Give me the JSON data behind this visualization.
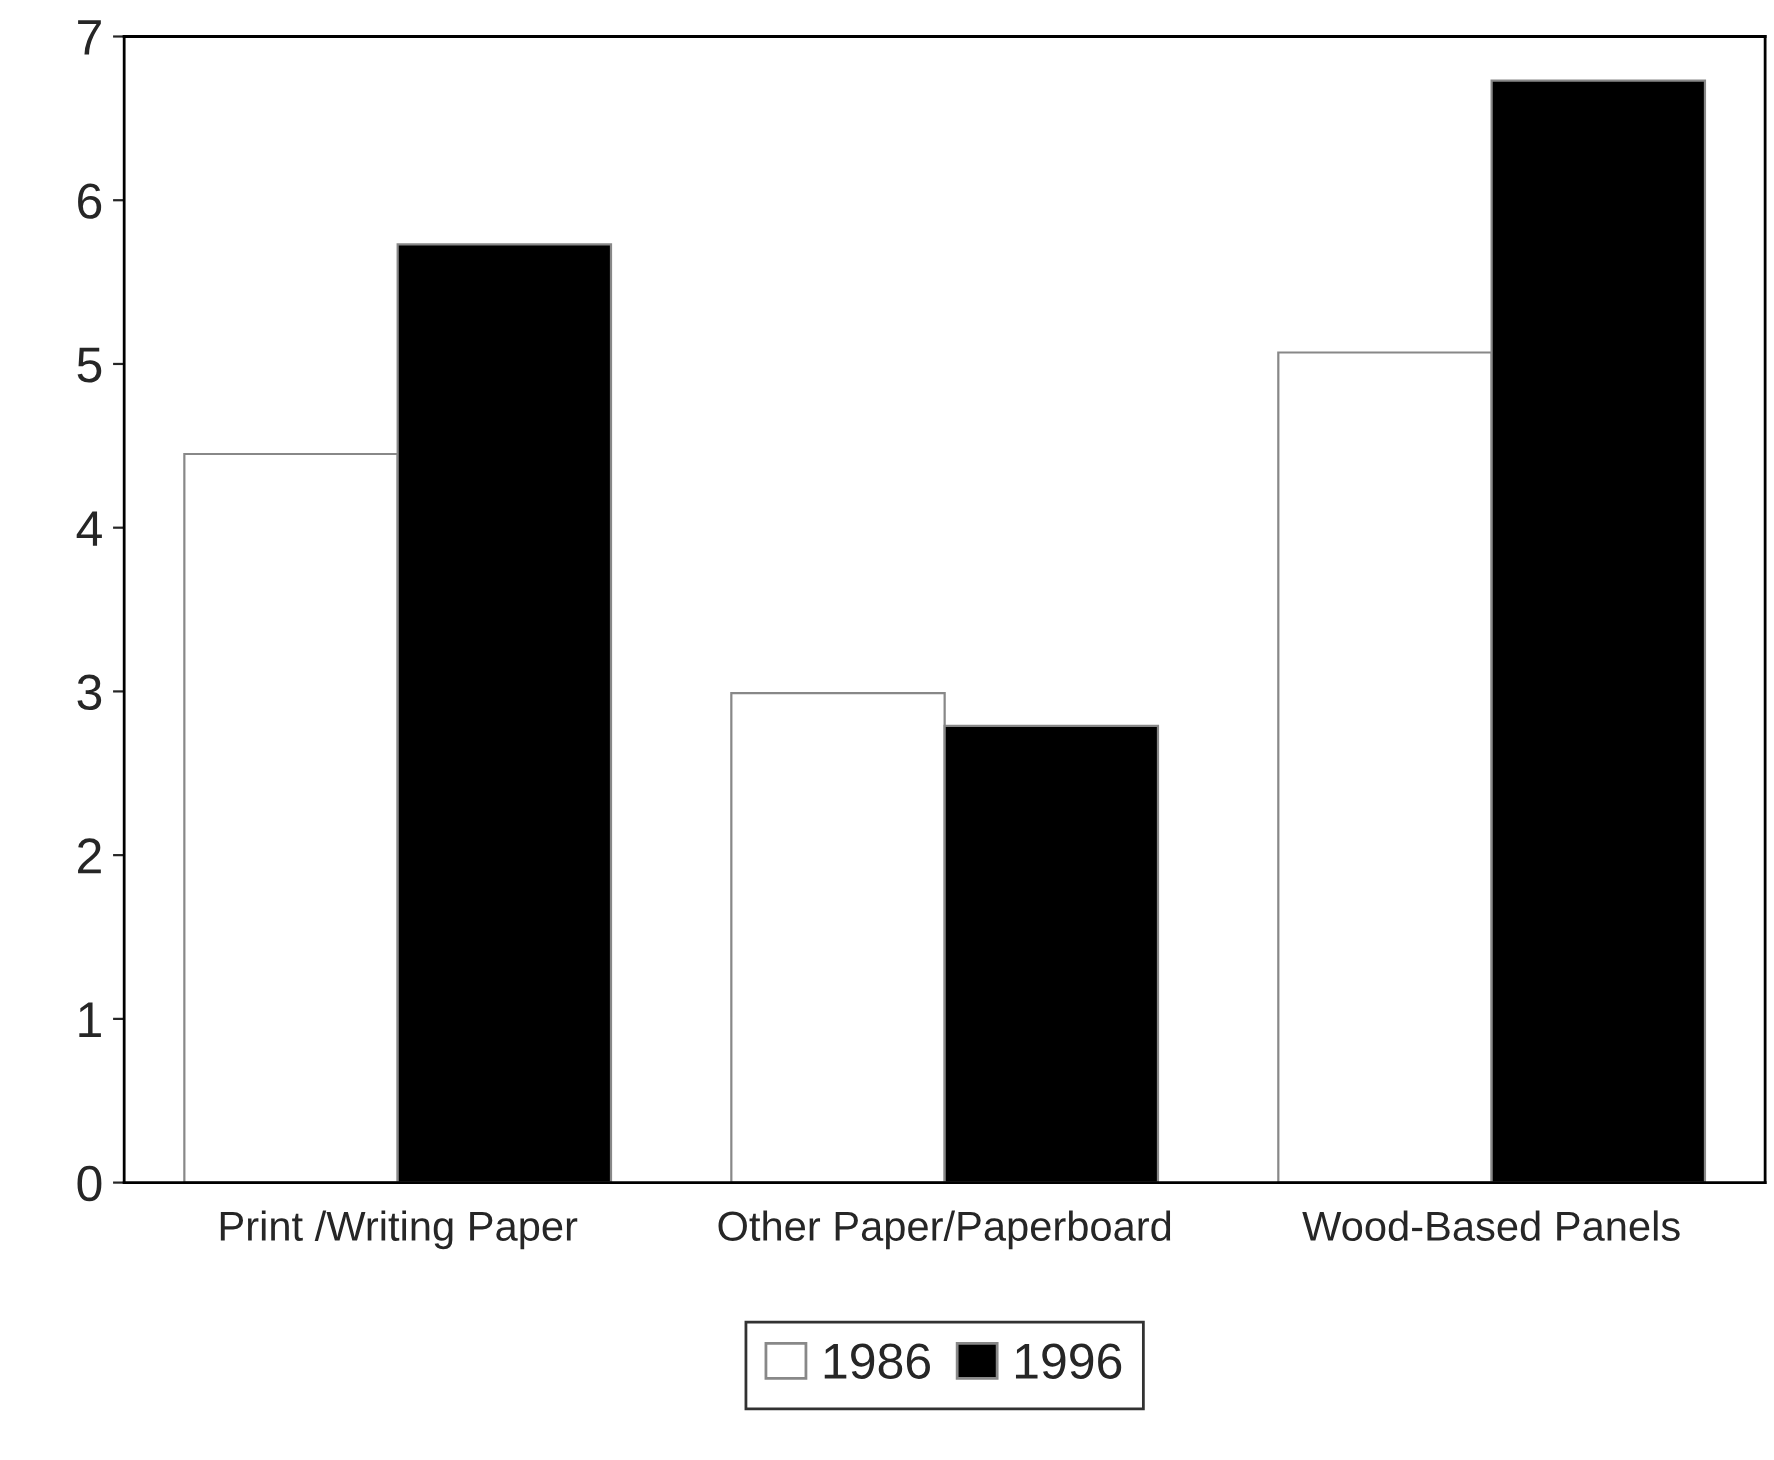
{
  "chart_data": {
    "type": "bar",
    "categories": [
      "Print /Writing Paper",
      "Other Paper/Paperboard",
      "Wood-Based Panels"
    ],
    "series": [
      {
        "name": "1986",
        "color": "#ffffff",
        "values": [
          4.45,
          2.99,
          5.07
        ]
      },
      {
        "name": "1996",
        "color": "#000000",
        "values": [
          5.73,
          2.79,
          6.73
        ]
      }
    ],
    "ylim": [
      0,
      7
    ],
    "yticks": [
      0,
      1,
      2,
      3,
      4,
      5,
      6,
      7
    ],
    "grid": false,
    "legend": "bottom"
  }
}
